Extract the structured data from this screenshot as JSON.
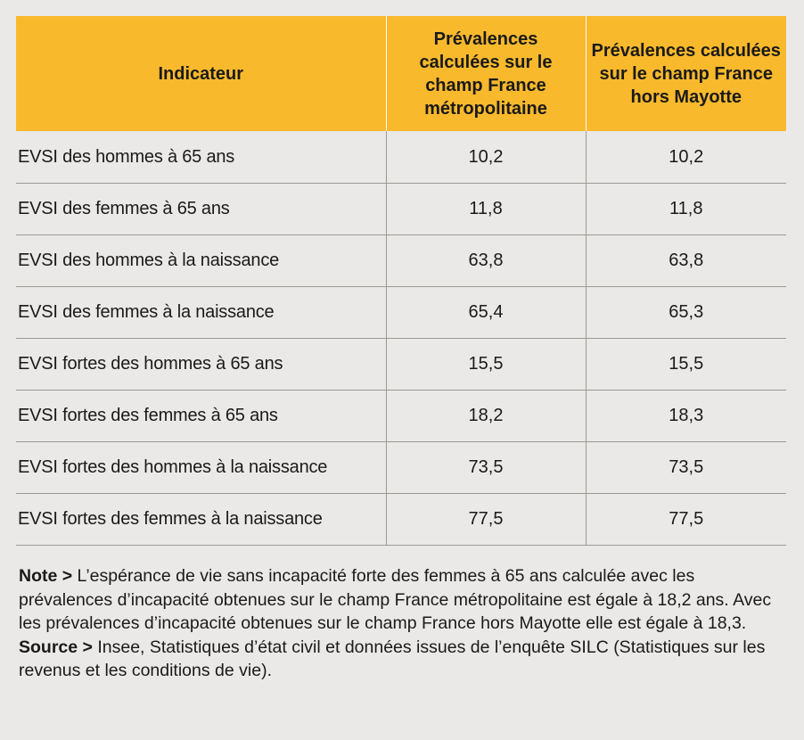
{
  "table": {
    "headers": [
      "Indicateur",
      "Prévalences calculées sur le champ France métropolitaine",
      "Prévalences calculées sur le champ France hors Mayotte"
    ],
    "rows": [
      {
        "label": "EVSI des hommes à 65 ans",
        "metro": "10,2",
        "hors_mayotte": "10,2"
      },
      {
        "label": "EVSI des femmes à 65 ans",
        "metro": "11,8",
        "hors_mayotte": "11,8"
      },
      {
        "label": "EVSI des hommes à la naissance",
        "metro": "63,8",
        "hors_mayotte": "63,8"
      },
      {
        "label": "EVSI des femmes à la naissance",
        "metro": "65,4",
        "hors_mayotte": "65,3"
      },
      {
        "label": "EVSI fortes des hommes à 65 ans",
        "metro": "15,5",
        "hors_mayotte": "15,5"
      },
      {
        "label": "EVSI fortes des femmes à 65 ans",
        "metro": "18,2",
        "hors_mayotte": "18,3"
      },
      {
        "label": "EVSI fortes des hommes à la naissance",
        "metro": "73,5",
        "hors_mayotte": "73,5"
      },
      {
        "label": "EVSI fortes des femmes à la naissance",
        "metro": "77,5",
        "hors_mayotte": "77,5"
      }
    ]
  },
  "note": {
    "label": "Note >",
    "text": " L’espérance de vie sans incapacité forte des femmes à 65 ans calculée avec les prévalences d’incapacité obtenues sur le champ France métropolitaine est égale à 18,2 ans. Avec les prévalences d’incapacité obtenues sur le champ France hors Mayotte elle est égale à 18,3."
  },
  "source": {
    "label": "Source >",
    "text": " Insee, Statistiques d’état civil et données issues de l’enquête SILC (Statistiques sur les revenus et les conditions de vie)."
  },
  "colors": {
    "header_bg": "#f9b92c",
    "page_bg": "#ebe9e7",
    "rule": "#9c9995"
  }
}
